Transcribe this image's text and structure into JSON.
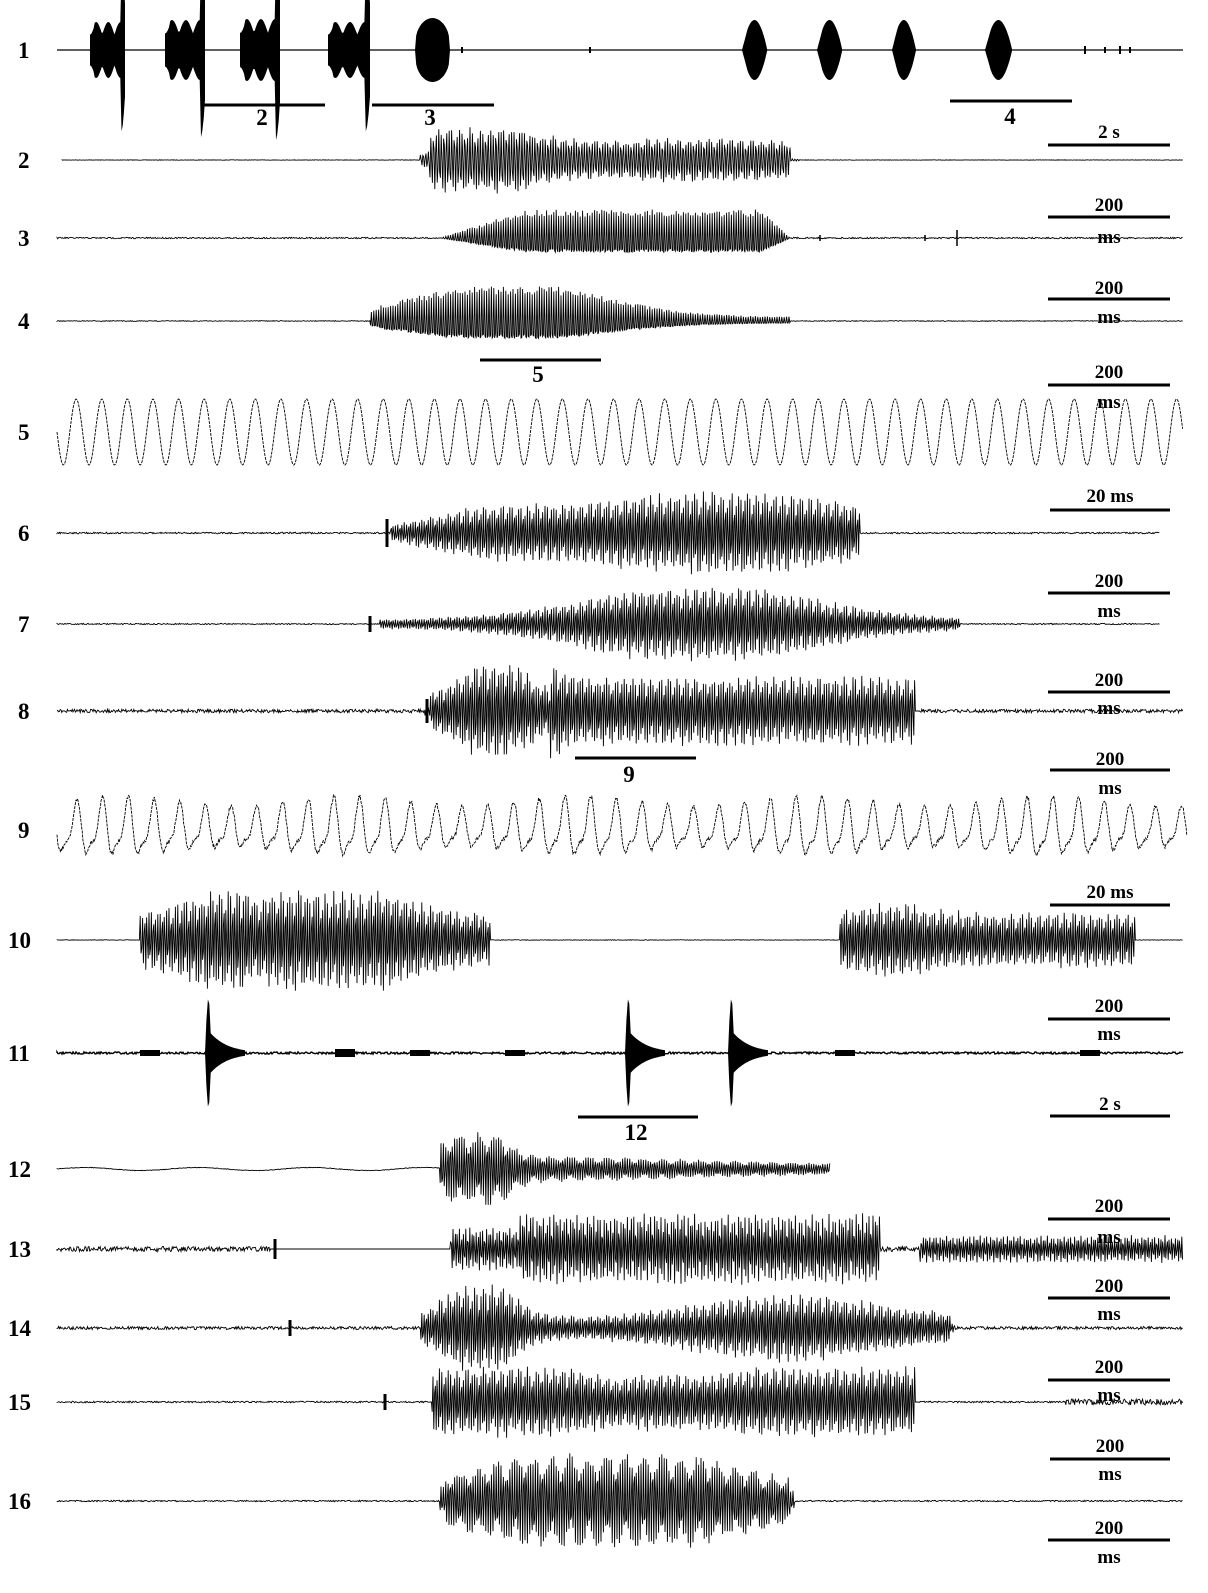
{
  "traces": [
    {
      "id": "1",
      "label": "1",
      "scale": [
        "2 s"
      ]
    },
    {
      "id": "2",
      "label": "2",
      "scale": [
        "200",
        "ms"
      ]
    },
    {
      "id": "3",
      "label": "3",
      "scale": [
        "200",
        "ms"
      ]
    },
    {
      "id": "4",
      "label": "4",
      "scale": [
        "200",
        "ms"
      ]
    },
    {
      "id": "5",
      "label": "5",
      "scale": [
        "20  ms"
      ]
    },
    {
      "id": "6",
      "label": "6",
      "scale": [
        "200",
        "ms"
      ]
    },
    {
      "id": "7",
      "label": "7",
      "scale": [
        "200",
        "ms"
      ]
    },
    {
      "id": "8",
      "label": "8",
      "scale": [
        "200",
        "ms"
      ]
    },
    {
      "id": "9",
      "label": "9",
      "scale": [
        "20  ms"
      ]
    },
    {
      "id": "10",
      "label": "10",
      "scale": [
        "200",
        "ms"
      ]
    },
    {
      "id": "11",
      "label": "11",
      "scale": [
        "2 s"
      ]
    },
    {
      "id": "12",
      "label": "12",
      "scale": [
        "200",
        "ms"
      ]
    },
    {
      "id": "13",
      "label": "13",
      "scale": [
        "200",
        "ms"
      ]
    },
    {
      "id": "14",
      "label": "14",
      "scale": [
        "200",
        "ms"
      ]
    },
    {
      "id": "15",
      "label": "15",
      "scale": [
        "200",
        "ms"
      ]
    },
    {
      "id": "16",
      "label": "16",
      "scale": [
        "200",
        "ms"
      ]
    }
  ],
  "segment_markers": [
    {
      "label": "2",
      "on": "1"
    },
    {
      "label": "3",
      "on": "1"
    },
    {
      "label": "4",
      "on": "1"
    },
    {
      "label": "5",
      "on": "4"
    },
    {
      "label": "9",
      "on": "8"
    },
    {
      "label": "12",
      "on": "11"
    }
  ]
}
